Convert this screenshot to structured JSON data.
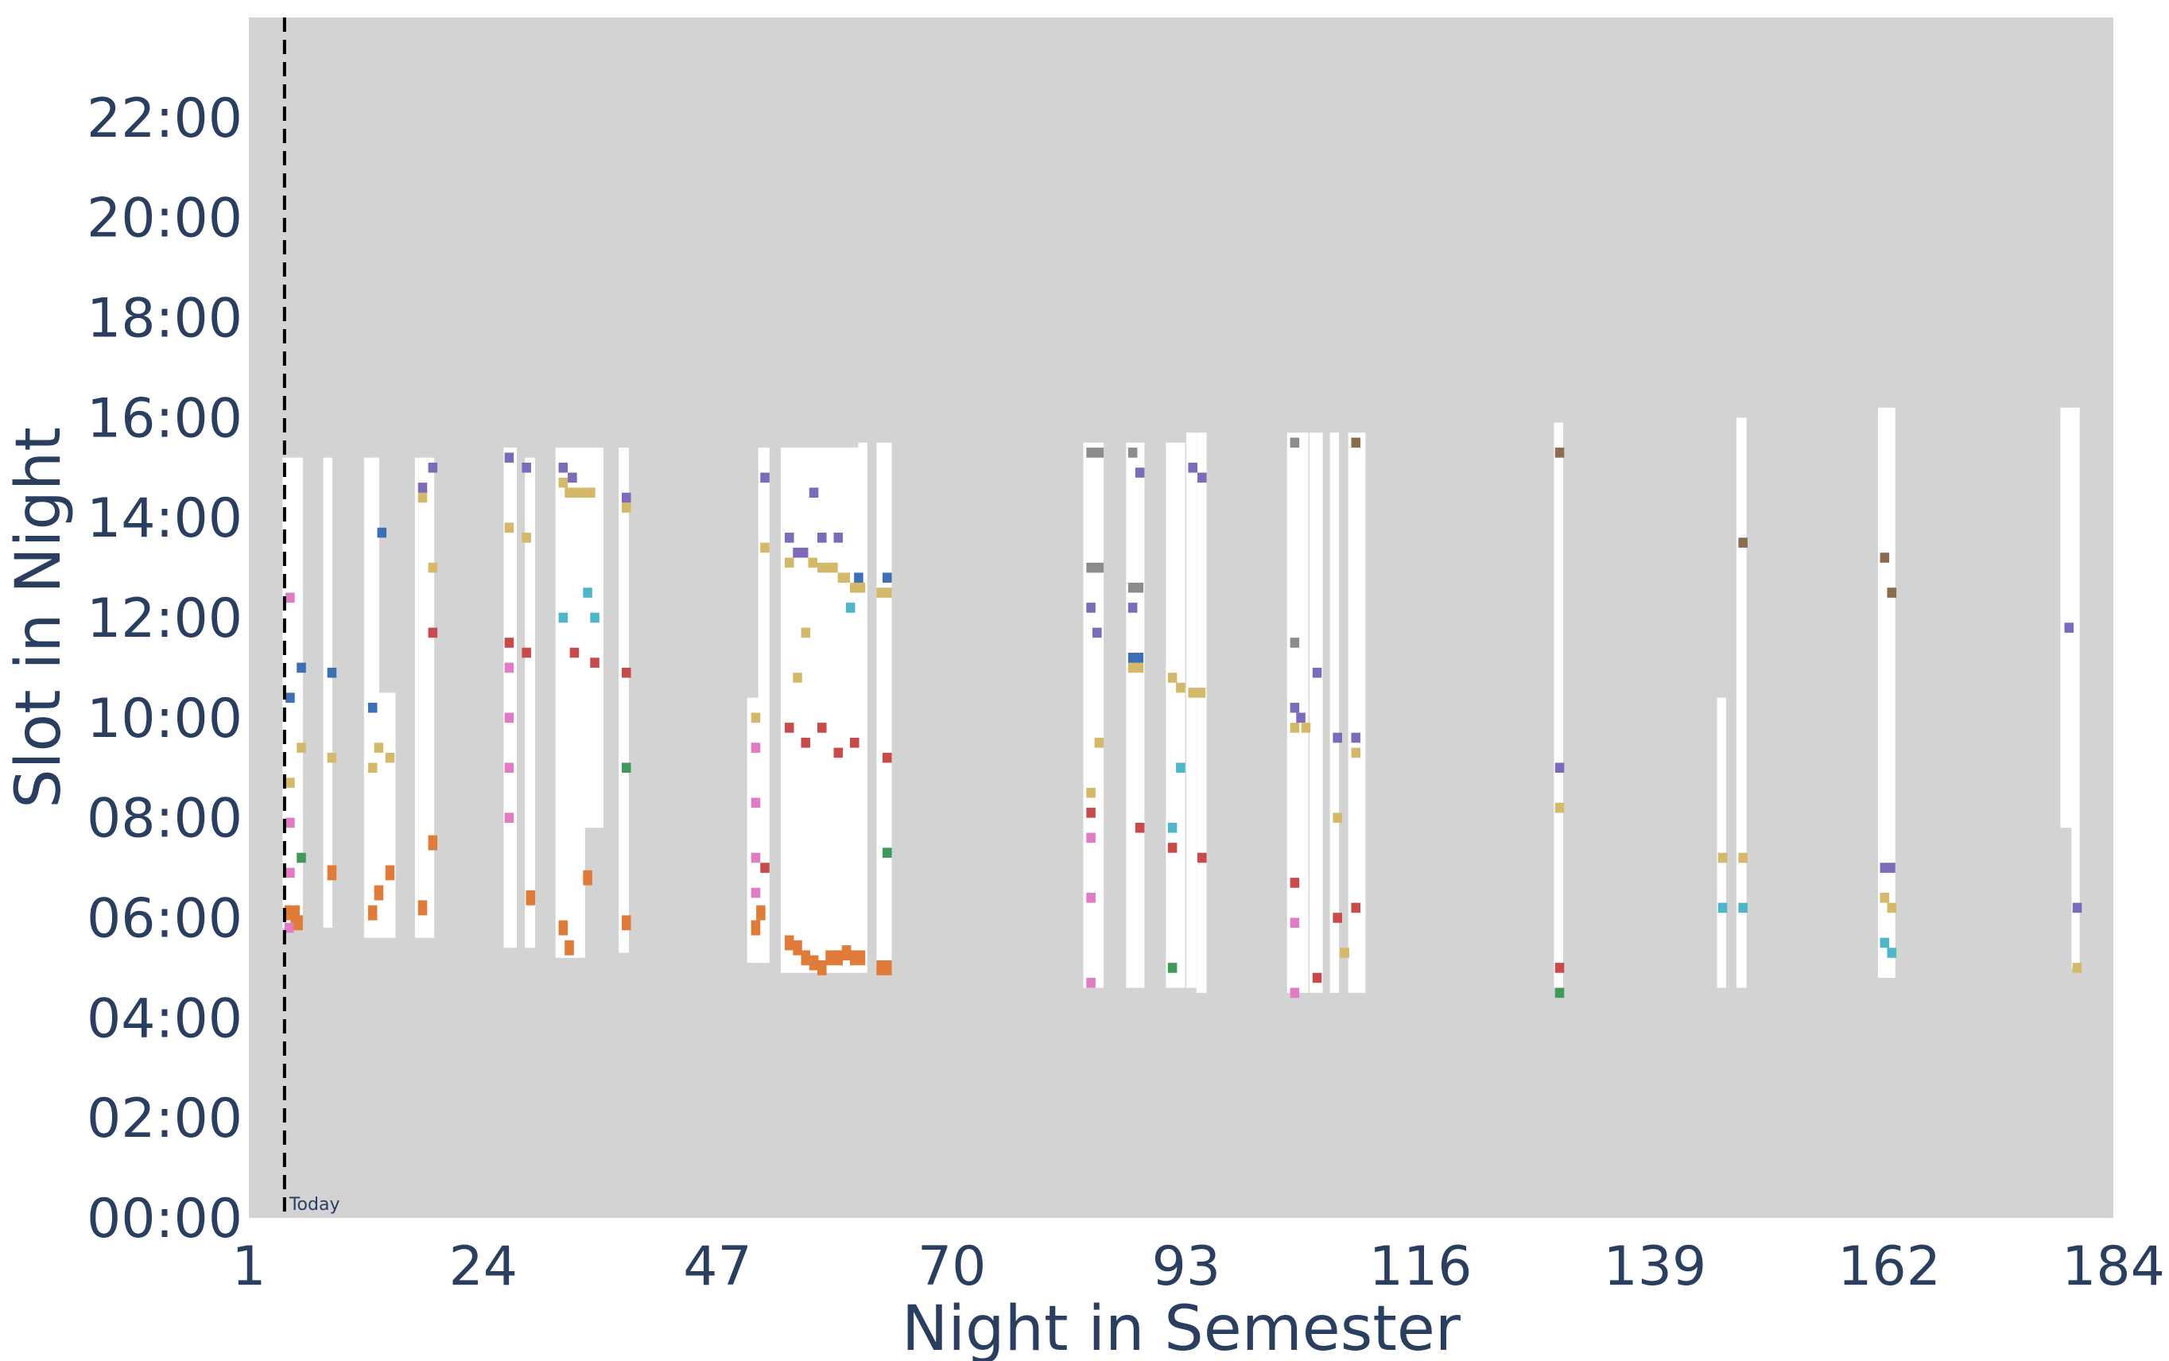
{
  "chart_data": {
    "type": "heatmap",
    "xlabel": "Night in Semester",
    "ylabel": "Slot in Night",
    "xlim": [
      1,
      184
    ],
    "ylim": [
      0,
      24
    ],
    "x_ticks": [
      "1",
      "24",
      "47",
      "70",
      "93",
      "116",
      "139",
      "162",
      "184"
    ],
    "x_tick_values": [
      1,
      24,
      47,
      70,
      93,
      116,
      139,
      162,
      184
    ],
    "y_ticks": [
      "00:00",
      "02:00",
      "04:00",
      "06:00",
      "08:00",
      "10:00",
      "12:00",
      "14:00",
      "16:00",
      "18:00",
      "20:00",
      "22:00"
    ],
    "y_tick_values": [
      0,
      2,
      4,
      6,
      8,
      10,
      12,
      14,
      16,
      18,
      20,
      22
    ],
    "background_color": "#d3d3d3",
    "available_color": "#ffffff",
    "today": {
      "night": 4.5,
      "label": "Today"
    },
    "colors": {
      "orange": "#e07b39",
      "gold": "#d4b96a",
      "purple": "#7b6bb8",
      "blue": "#3d6fb6",
      "red": "#c84a4a",
      "pink": "#e07bc4",
      "green": "#3f9a59",
      "cyan": "#4db6c9",
      "gray": "#8c8c8c",
      "brown": "#8c6c4f"
    },
    "available_windows": [
      {
        "x0": 4.3,
        "x1": 6.3,
        "y0": 5.8,
        "y1": 15.2
      },
      {
        "x0": 8.3,
        "x1": 9.2,
        "y0": 5.8,
        "y1": 15.2
      },
      {
        "x0": 12.3,
        "x1": 13.8,
        "y0": 5.6,
        "y1": 15.2
      },
      {
        "x0": 13.8,
        "x1": 15.4,
        "y0": 5.6,
        "y1": 10.5
      },
      {
        "x0": 17.3,
        "x1": 19.2,
        "y0": 5.6,
        "y1": 15.2
      },
      {
        "x0": 26.0,
        "x1": 27.3,
        "y0": 5.4,
        "y1": 15.4
      },
      {
        "x0": 28.1,
        "x1": 29.1,
        "y0": 5.4,
        "y1": 15.2
      },
      {
        "x0": 31.1,
        "x1": 34.0,
        "y0": 5.2,
        "y1": 15.4
      },
      {
        "x0": 34.0,
        "x1": 35.8,
        "y0": 7.8,
        "y1": 15.4
      },
      {
        "x0": 37.3,
        "x1": 38.3,
        "y0": 5.3,
        "y1": 15.4
      },
      {
        "x0": 49.9,
        "x1": 51.8,
        "y0": 5.1,
        "y1": 10.4
      },
      {
        "x0": 51.0,
        "x1": 52.1,
        "y0": 5.1,
        "y1": 15.4
      },
      {
        "x0": 53.2,
        "x1": 61.2,
        "y0": 4.9,
        "y1": 15.4
      },
      {
        "x0": 60.8,
        "x1": 61.7,
        "y0": 4.9,
        "y1": 15.5
      },
      {
        "x0": 62.6,
        "x1": 64.1,
        "y0": 5.0,
        "y1": 15.5
      },
      {
        "x0": 82.9,
        "x1": 84.9,
        "y0": 4.6,
        "y1": 15.5
      },
      {
        "x0": 87.1,
        "x1": 88.9,
        "y0": 4.6,
        "y1": 15.5
      },
      {
        "x0": 91.0,
        "x1": 92.9,
        "y0": 4.6,
        "y1": 15.5
      },
      {
        "x0": 93.0,
        "x1": 94.0,
        "y0": 4.6,
        "y1": 15.7
      },
      {
        "x0": 94.0,
        "x1": 95.0,
        "y0": 4.5,
        "y1": 15.7
      },
      {
        "x0": 102.9,
        "x1": 105.0,
        "y0": 4.5,
        "y1": 15.7
      },
      {
        "x0": 105.1,
        "x1": 106.4,
        "y0": 4.5,
        "y1": 15.7
      },
      {
        "x0": 107.1,
        "x1": 108.0,
        "y0": 4.5,
        "y1": 15.7
      },
      {
        "x0": 108.9,
        "x1": 110.6,
        "y0": 4.5,
        "y1": 15.7
      },
      {
        "x0": 129.1,
        "x1": 130.0,
        "y0": 4.6,
        "y1": 15.9
      },
      {
        "x0": 145.1,
        "x1": 146.0,
        "y0": 4.6,
        "y1": 10.4
      },
      {
        "x0": 147.0,
        "x1": 148.0,
        "y0": 4.6,
        "y1": 16.0
      },
      {
        "x0": 160.9,
        "x1": 162.6,
        "y0": 4.8,
        "y1": 16.2
      },
      {
        "x0": 178.8,
        "x1": 179.9,
        "y0": 7.8,
        "y1": 16.2
      },
      {
        "x0": 179.9,
        "x1": 180.7,
        "y0": 5.0,
        "y1": 16.2
      }
    ],
    "scheduled_slots": [
      {
        "x": 4.5,
        "y": 6.1,
        "w": 1.5,
        "h": 0.3,
        "c": "orange"
      },
      {
        "x": 5.1,
        "y": 5.9,
        "w": 1.2,
        "h": 0.3,
        "c": "orange"
      },
      {
        "x": 4.6,
        "y": 6.9,
        "c": "pink"
      },
      {
        "x": 4.6,
        "y": 7.9,
        "c": "pink"
      },
      {
        "x": 5.7,
        "y": 7.2,
        "c": "green"
      },
      {
        "x": 4.6,
        "y": 8.7,
        "c": "gold"
      },
      {
        "x": 5.7,
        "y": 9.4,
        "c": "gold"
      },
      {
        "x": 4.6,
        "y": 10.4,
        "c": "blue"
      },
      {
        "x": 5.7,
        "y": 11.0,
        "c": "blue"
      },
      {
        "x": 4.6,
        "y": 12.4,
        "c": "pink"
      },
      {
        "x": 4.5,
        "y": 5.8,
        "c": "pink"
      },
      {
        "x": 8.7,
        "y": 6.9,
        "w": 0.9,
        "h": 0.3,
        "c": "orange"
      },
      {
        "x": 8.7,
        "y": 9.2,
        "c": "gold"
      },
      {
        "x": 8.7,
        "y": 10.9,
        "c": "blue"
      },
      {
        "x": 12.7,
        "y": 6.1,
        "w": 0.9,
        "h": 0.3,
        "c": "orange"
      },
      {
        "x": 13.3,
        "y": 6.5,
        "w": 0.9,
        "h": 0.3,
        "c": "orange"
      },
      {
        "x": 14.4,
        "y": 6.9,
        "w": 0.9,
        "h": 0.3,
        "c": "orange"
      },
      {
        "x": 12.7,
        "y": 9.0,
        "c": "gold"
      },
      {
        "x": 13.3,
        "y": 9.4,
        "c": "gold"
      },
      {
        "x": 14.4,
        "y": 9.2,
        "c": "gold"
      },
      {
        "x": 12.7,
        "y": 10.2,
        "c": "blue"
      },
      {
        "x": 13.6,
        "y": 13.7,
        "c": "blue"
      },
      {
        "x": 17.6,
        "y": 6.2,
        "w": 0.9,
        "h": 0.3,
        "c": "orange"
      },
      {
        "x": 18.6,
        "y": 7.5,
        "w": 0.9,
        "h": 0.3,
        "c": "orange"
      },
      {
        "x": 18.6,
        "y": 11.7,
        "c": "red"
      },
      {
        "x": 18.6,
        "y": 13.0,
        "c": "gold"
      },
      {
        "x": 17.6,
        "y": 14.4,
        "c": "gold"
      },
      {
        "x": 17.6,
        "y": 14.6,
        "c": "purple"
      },
      {
        "x": 18.6,
        "y": 15.0,
        "c": "purple"
      },
      {
        "x": 26.1,
        "y": 8.0,
        "c": "pink"
      },
      {
        "x": 26.1,
        "y": 9.0,
        "c": "pink"
      },
      {
        "x": 26.1,
        "y": 10.0,
        "c": "pink"
      },
      {
        "x": 26.1,
        "y": 11.0,
        "c": "pink"
      },
      {
        "x": 26.1,
        "y": 11.5,
        "c": "red"
      },
      {
        "x": 27.8,
        "y": 11.3,
        "c": "red"
      },
      {
        "x": 26.1,
        "y": 13.8,
        "c": "gold"
      },
      {
        "x": 27.8,
        "y": 13.6,
        "c": "gold"
      },
      {
        "x": 26.1,
        "y": 15.2,
        "c": "purple"
      },
      {
        "x": 27.8,
        "y": 15.0,
        "c": "purple"
      },
      {
        "x": 28.2,
        "y": 6.4,
        "w": 0.9,
        "h": 0.3,
        "c": "orange"
      },
      {
        "x": 31.4,
        "y": 5.8,
        "w": 0.9,
        "h": 0.3,
        "c": "orange"
      },
      {
        "x": 32.0,
        "y": 5.4,
        "w": 0.9,
        "h": 0.3,
        "c": "orange"
      },
      {
        "x": 33.8,
        "y": 6.8,
        "w": 0.9,
        "h": 0.3,
        "c": "orange"
      },
      {
        "x": 31.4,
        "y": 12.0,
        "c": "cyan"
      },
      {
        "x": 33.8,
        "y": 12.5,
        "c": "cyan"
      },
      {
        "x": 34.5,
        "y": 12.0,
        "c": "cyan"
      },
      {
        "x": 32.5,
        "y": 11.3,
        "c": "red"
      },
      {
        "x": 34.5,
        "y": 11.1,
        "c": "red"
      },
      {
        "x": 31.4,
        "y": 14.7,
        "c": "gold"
      },
      {
        "x": 32.0,
        "y": 14.5,
        "w": 3.0,
        "h": 0.2,
        "c": "gold"
      },
      {
        "x": 31.4,
        "y": 15.0,
        "c": "purple"
      },
      {
        "x": 32.3,
        "y": 14.8,
        "c": "purple"
      },
      {
        "x": 37.6,
        "y": 5.9,
        "w": 0.9,
        "h": 0.3,
        "c": "orange"
      },
      {
        "x": 37.6,
        "y": 9.0,
        "c": "green"
      },
      {
        "x": 37.6,
        "y": 10.9,
        "c": "red"
      },
      {
        "x": 37.6,
        "y": 14.2,
        "c": "gold"
      },
      {
        "x": 37.6,
        "y": 14.4,
        "c": "purple"
      },
      {
        "x": 50.3,
        "y": 5.8,
        "w": 0.9,
        "h": 0.3,
        "c": "orange"
      },
      {
        "x": 50.8,
        "y": 6.1,
        "w": 0.9,
        "h": 0.3,
        "c": "orange"
      },
      {
        "x": 50.3,
        "y": 6.5,
        "c": "pink"
      },
      {
        "x": 50.3,
        "y": 7.2,
        "c": "pink"
      },
      {
        "x": 51.2,
        "y": 7.0,
        "c": "red"
      },
      {
        "x": 50.3,
        "y": 8.3,
        "c": "pink"
      },
      {
        "x": 50.3,
        "y": 9.4,
        "c": "pink"
      },
      {
        "x": 50.3,
        "y": 10.0,
        "c": "gold"
      },
      {
        "x": 51.2,
        "y": 13.4,
        "c": "gold"
      },
      {
        "x": 51.2,
        "y": 14.8,
        "c": "purple"
      },
      {
        "x": 53.6,
        "y": 5.5,
        "w": 0.9,
        "h": 0.3,
        "c": "orange"
      },
      {
        "x": 54.4,
        "y": 5.4,
        "w": 0.9,
        "h": 0.3,
        "c": "orange"
      },
      {
        "x": 55.2,
        "y": 5.2,
        "w": 0.9,
        "h": 0.3,
        "c": "orange"
      },
      {
        "x": 56.0,
        "y": 5.1,
        "w": 0.9,
        "h": 0.3,
        "c": "orange"
      },
      {
        "x": 56.8,
        "y": 5.0,
        "w": 0.9,
        "h": 0.3,
        "c": "orange"
      },
      {
        "x": 57.6,
        "y": 5.2,
        "w": 0.9,
        "h": 0.3,
        "c": "orange"
      },
      {
        "x": 58.4,
        "y": 5.2,
        "w": 0.9,
        "h": 0.3,
        "c": "orange"
      },
      {
        "x": 59.2,
        "y": 5.3,
        "w": 0.9,
        "h": 0.3,
        "c": "orange"
      },
      {
        "x": 60.0,
        "y": 5.2,
        "w": 1.5,
        "h": 0.3,
        "c": "orange"
      },
      {
        "x": 62.6,
        "y": 5.0,
        "w": 1.5,
        "h": 0.3,
        "c": "orange"
      },
      {
        "x": 53.6,
        "y": 9.8,
        "c": "red"
      },
      {
        "x": 55.2,
        "y": 9.5,
        "c": "red"
      },
      {
        "x": 56.8,
        "y": 9.8,
        "c": "red"
      },
      {
        "x": 58.4,
        "y": 9.3,
        "c": "red"
      },
      {
        "x": 60.0,
        "y": 9.5,
        "c": "red"
      },
      {
        "x": 63.2,
        "y": 9.2,
        "c": "red"
      },
      {
        "x": 63.2,
        "y": 7.3,
        "c": "green"
      },
      {
        "x": 54.4,
        "y": 10.8,
        "c": "gold"
      },
      {
        "x": 55.2,
        "y": 11.7,
        "c": "gold"
      },
      {
        "x": 53.6,
        "y": 13.1,
        "w": 0.9,
        "h": 0.2,
        "c": "gold"
      },
      {
        "x": 54.4,
        "y": 13.3,
        "w": 1.5,
        "h": 0.2,
        "c": "purple"
      },
      {
        "x": 55.9,
        "y": 13.1,
        "w": 0.9,
        "h": 0.2,
        "c": "gold"
      },
      {
        "x": 56.8,
        "y": 13.0,
        "w": 2.0,
        "h": 0.2,
        "c": "gold"
      },
      {
        "x": 58.8,
        "y": 12.8,
        "w": 1.2,
        "h": 0.2,
        "c": "gold"
      },
      {
        "x": 60.0,
        "y": 12.6,
        "w": 1.5,
        "h": 0.2,
        "c": "gold"
      },
      {
        "x": 62.6,
        "y": 12.5,
        "w": 1.5,
        "h": 0.2,
        "c": "gold"
      },
      {
        "x": 53.6,
        "y": 13.6,
        "c": "purple"
      },
      {
        "x": 56.0,
        "y": 14.5,
        "c": "purple"
      },
      {
        "x": 56.8,
        "y": 13.6,
        "c": "purple"
      },
      {
        "x": 58.4,
        "y": 13.6,
        "c": "purple"
      },
      {
        "x": 59.6,
        "y": 12.2,
        "c": "cyan"
      },
      {
        "x": 60.4,
        "y": 12.8,
        "c": "blue"
      },
      {
        "x": 63.2,
        "y": 12.8,
        "c": "blue"
      },
      {
        "x": 83.2,
        "y": 4.7,
        "c": "pink"
      },
      {
        "x": 83.2,
        "y": 6.4,
        "c": "pink"
      },
      {
        "x": 83.2,
        "y": 7.6,
        "c": "pink"
      },
      {
        "x": 83.2,
        "y": 8.1,
        "c": "red"
      },
      {
        "x": 83.2,
        "y": 8.5,
        "c": "gold"
      },
      {
        "x": 84.0,
        "y": 9.5,
        "c": "gold"
      },
      {
        "x": 83.2,
        "y": 12.2,
        "c": "purple"
      },
      {
        "x": 83.8,
        "y": 11.7,
        "c": "purple"
      },
      {
        "x": 83.2,
        "y": 13.0,
        "w": 1.7,
        "h": 0.2,
        "c": "gray"
      },
      {
        "x": 83.2,
        "y": 15.3,
        "w": 1.7,
        "h": 0.2,
        "c": "gray"
      },
      {
        "x": 88.0,
        "y": 7.8,
        "c": "red"
      },
      {
        "x": 87.3,
        "y": 11.0,
        "w": 1.5,
        "h": 0.2,
        "c": "gold"
      },
      {
        "x": 87.3,
        "y": 11.2,
        "w": 1.5,
        "h": 0.2,
        "c": "blue"
      },
      {
        "x": 87.3,
        "y": 12.2,
        "c": "purple"
      },
      {
        "x": 87.3,
        "y": 12.6,
        "w": 1.5,
        "h": 0.2,
        "c": "gray"
      },
      {
        "x": 88.0,
        "y": 14.9,
        "c": "purple"
      },
      {
        "x": 87.3,
        "y": 15.3,
        "c": "gray"
      },
      {
        "x": 91.2,
        "y": 5.0,
        "c": "green"
      },
      {
        "x": 91.2,
        "y": 7.4,
        "c": "red"
      },
      {
        "x": 91.2,
        "y": 7.8,
        "c": "cyan"
      },
      {
        "x": 92.0,
        "y": 9.0,
        "c": "cyan"
      },
      {
        "x": 91.2,
        "y": 10.8,
        "c": "gold"
      },
      {
        "x": 92.0,
        "y": 10.6,
        "c": "gold"
      },
      {
        "x": 93.2,
        "y": 10.5,
        "w": 1.7,
        "h": 0.2,
        "c": "gold"
      },
      {
        "x": 93.2,
        "y": 15.0,
        "c": "purple"
      },
      {
        "x": 94.1,
        "y": 14.8,
        "c": "purple"
      },
      {
        "x": 94.1,
        "y": 7.2,
        "c": "red"
      },
      {
        "x": 103.2,
        "y": 4.5,
        "c": "pink"
      },
      {
        "x": 103.2,
        "y": 5.9,
        "c": "pink"
      },
      {
        "x": 103.2,
        "y": 6.7,
        "c": "red"
      },
      {
        "x": 103.2,
        "y": 9.8,
        "c": "gold"
      },
      {
        "x": 103.8,
        "y": 10.0,
        "c": "purple"
      },
      {
        "x": 104.3,
        "y": 9.8,
        "c": "gold"
      },
      {
        "x": 103.2,
        "y": 10.2,
        "c": "purple"
      },
      {
        "x": 103.2,
        "y": 11.5,
        "c": "gray"
      },
      {
        "x": 105.4,
        "y": 10.9,
        "c": "purple"
      },
      {
        "x": 103.2,
        "y": 15.5,
        "c": "gray"
      },
      {
        "x": 105.4,
        "y": 4.8,
        "c": "red"
      },
      {
        "x": 107.4,
        "y": 6.0,
        "c": "red"
      },
      {
        "x": 107.4,
        "y": 8.0,
        "c": "gold"
      },
      {
        "x": 107.4,
        "y": 9.6,
        "c": "purple"
      },
      {
        "x": 108.1,
        "y": 5.3,
        "c": "gold"
      },
      {
        "x": 109.2,
        "y": 6.2,
        "c": "red"
      },
      {
        "x": 109.2,
        "y": 9.3,
        "c": "gold"
      },
      {
        "x": 109.2,
        "y": 9.6,
        "c": "purple"
      },
      {
        "x": 109.2,
        "y": 15.5,
        "c": "brown"
      },
      {
        "x": 129.2,
        "y": 4.5,
        "c": "green"
      },
      {
        "x": 129.2,
        "y": 5.0,
        "c": "red"
      },
      {
        "x": 129.2,
        "y": 8.2,
        "c": "gold"
      },
      {
        "x": 129.2,
        "y": 9.0,
        "c": "purple"
      },
      {
        "x": 129.2,
        "y": 15.3,
        "c": "brown"
      },
      {
        "x": 145.2,
        "y": 6.2,
        "c": "cyan"
      },
      {
        "x": 145.2,
        "y": 7.2,
        "c": "gold"
      },
      {
        "x": 147.2,
        "y": 6.2,
        "c": "cyan"
      },
      {
        "x": 147.2,
        "y": 7.2,
        "c": "gold"
      },
      {
        "x": 147.2,
        "y": 13.5,
        "c": "brown"
      },
      {
        "x": 161.1,
        "y": 5.5,
        "c": "cyan"
      },
      {
        "x": 161.8,
        "y": 5.3,
        "c": "cyan"
      },
      {
        "x": 161.1,
        "y": 6.4,
        "c": "gold"
      },
      {
        "x": 161.8,
        "y": 6.2,
        "c": "gold"
      },
      {
        "x": 161.1,
        "y": 7.0,
        "w": 1.5,
        "h": 0.2,
        "c": "purple"
      },
      {
        "x": 161.8,
        "y": 12.5,
        "c": "brown"
      },
      {
        "x": 161.1,
        "y": 13.2,
        "c": "brown"
      },
      {
        "x": 180.0,
        "y": 5.0,
        "c": "gold"
      },
      {
        "x": 180.0,
        "y": 6.2,
        "c": "purple"
      },
      {
        "x": 179.2,
        "y": 11.8,
        "c": "purple"
      }
    ]
  }
}
